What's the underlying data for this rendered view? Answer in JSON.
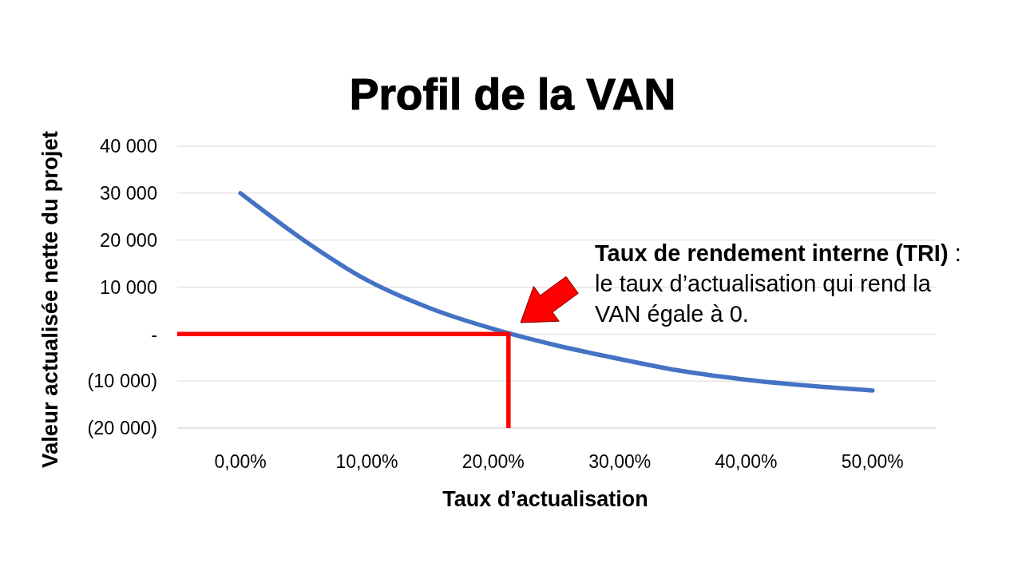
{
  "chart_data": {
    "type": "line",
    "title": "Profil de la VAN",
    "xlabel": "Taux d’actualisation",
    "ylabel": "Valeur actualisée nette du projet",
    "xlim": [
      -5,
      55
    ],
    "xticks": [
      {
        "value": 0,
        "label": "0,00%"
      },
      {
        "value": 10,
        "label": "10,00%"
      },
      {
        "value": 20,
        "label": "20,00%"
      },
      {
        "value": 30,
        "label": "30,00%"
      },
      {
        "value": 40,
        "label": "40,00%"
      },
      {
        "value": 50,
        "label": "50,00%"
      }
    ],
    "ylim": [
      -20000,
      40000
    ],
    "yticks": [
      {
        "value": 40000,
        "label": "40 000"
      },
      {
        "value": 30000,
        "label": "30 000"
      },
      {
        "value": 20000,
        "label": "20 000"
      },
      {
        "value": 10000,
        "label": "10 000"
      },
      {
        "value": 0,
        "label": "-"
      },
      {
        "value": -10000,
        "label": "(10 000)"
      },
      {
        "value": -20000,
        "label": "(20 000)"
      }
    ],
    "grid": "y",
    "series": [
      {
        "color": "#4472c4",
        "x": [
          0,
          5,
          10,
          15,
          20,
          25,
          30,
          35,
          40,
          45,
          50
        ],
        "values": [
          30000,
          20000,
          11500,
          5500,
          1100,
          -2400,
          -5300,
          -7900,
          -9700,
          -11000,
          -12000
        ]
      },
      {
        "color": "#ff0000",
        "x": [
          -5,
          21.2,
          21.2
        ],
        "values": [
          0,
          0,
          -20000
        ]
      }
    ],
    "annotations": [
      "Taux de rendement interne (TRI)",
      " : le taux d’actualisation qui rend la VAN égale à 0."
    ]
  }
}
